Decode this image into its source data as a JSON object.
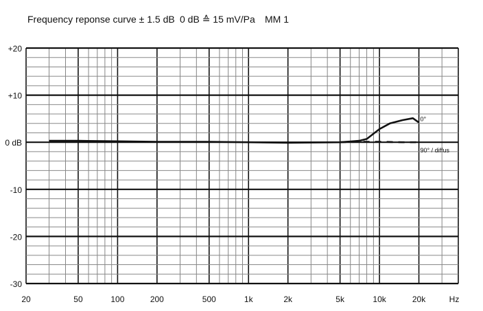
{
  "chart_data": {
    "type": "line",
    "title": "Frequency reponse curve ± 1.5 dB",
    "subtitle": "0 dB ≙ 15 mV/Pa",
    "model": "MM 1",
    "x_scale": "log",
    "xlim": [
      20,
      40000
    ],
    "ylim": [
      -30,
      20
    ],
    "grid": true,
    "x_ticks": [
      {
        "v": 20,
        "l": "20"
      },
      {
        "v": 50,
        "l": "50"
      },
      {
        "v": 100,
        "l": "100"
      },
      {
        "v": 200,
        "l": "200"
      },
      {
        "v": 500,
        "l": "500"
      },
      {
        "v": 1000,
        "l": "1k"
      },
      {
        "v": 2000,
        "l": "2k"
      },
      {
        "v": 5000,
        "l": "5k"
      },
      {
        "v": 10000,
        "l": "10k"
      },
      {
        "v": 20000,
        "l": "20k"
      }
    ],
    "x_unit": "Hz",
    "y_ticks": [
      {
        "v": 20,
        "l": "+20"
      },
      {
        "v": 10,
        "l": "+10"
      },
      {
        "v": 0,
        "l": "0 dB"
      },
      {
        "v": -10,
        "l": "-10"
      },
      {
        "v": -20,
        "l": "-20"
      },
      {
        "v": -30,
        "l": "-30"
      }
    ],
    "series": [
      {
        "name": "0°",
        "style": "solid",
        "x": [
          30,
          50,
          100,
          200,
          500,
          1000,
          2000,
          5000,
          7000,
          8000,
          10000,
          12000,
          15000,
          18000,
          20000
        ],
        "y": [
          0.3,
          0.3,
          0.2,
          0.1,
          0.1,
          0,
          -0.1,
          0,
          0.3,
          0.7,
          2.8,
          4.0,
          4.7,
          5.1,
          4.2
        ]
      },
      {
        "name": "90° / diffus",
        "style": "dashed",
        "x": [
          5000,
          7000,
          10000,
          15000,
          19000,
          20000
        ],
        "y": [
          0,
          0.1,
          0.1,
          0,
          0,
          -1
        ]
      }
    ]
  }
}
